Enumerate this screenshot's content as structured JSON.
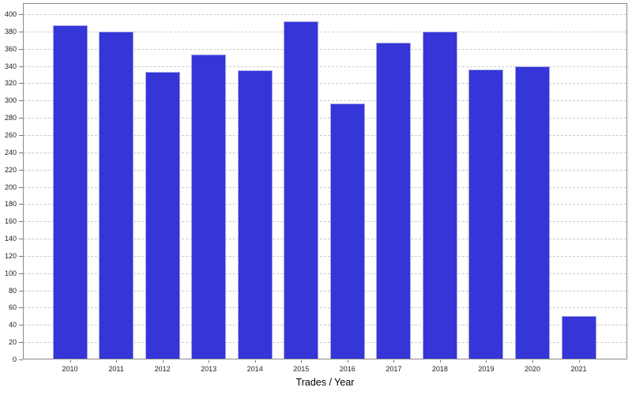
{
  "chart_data": {
    "type": "bar",
    "title": "",
    "xlabel": "Trades / Year",
    "ylabel": "",
    "categories": [
      "2010",
      "2011",
      "2012",
      "2013",
      "2014",
      "2015",
      "2016",
      "2017",
      "2018",
      "2019",
      "2020",
      "2021"
    ],
    "values": [
      387,
      380,
      333,
      353,
      335,
      392,
      297,
      367,
      380,
      336,
      340,
      50
    ],
    "ylim": [
      0,
      400
    ],
    "yticks": [
      0,
      20,
      40,
      60,
      80,
      100,
      120,
      140,
      160,
      180,
      200,
      220,
      240,
      260,
      280,
      300,
      320,
      340,
      360,
      380,
      400
    ],
    "grid": "horizontal-dashed",
    "legend_position": "none",
    "colors": {
      "bar_fill": "#3535d8",
      "bar_border": "#a5a5e4",
      "gridline": "#cccccc",
      "plot_border": "#8a8a8a",
      "tick_label": "#222222",
      "axis_label": "#000000",
      "background": "#ffffff"
    }
  }
}
